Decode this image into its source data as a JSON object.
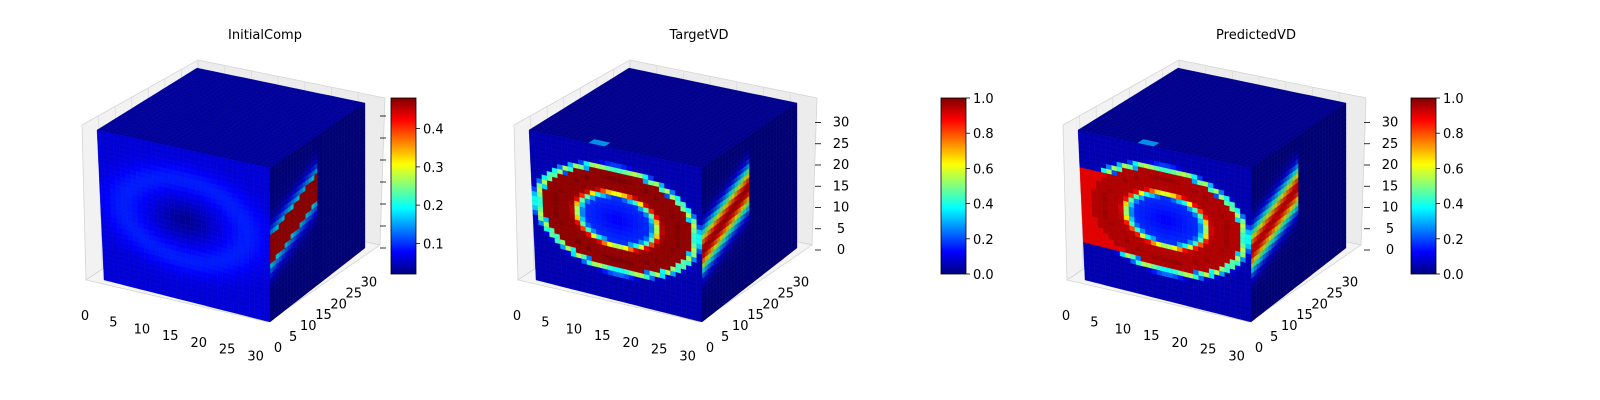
{
  "figure": {
    "colormap": "jet",
    "colormap_stops": [
      "#00007f",
      "#0000ff",
      "#007fff",
      "#00ffff",
      "#7fff7f",
      "#ffff00",
      "#ff7f00",
      "#ff0000",
      "#7f0000"
    ]
  },
  "chart_data": [
    {
      "type": "voxel-3d",
      "title": "InitialComp",
      "x_ticks": [
        "0",
        "5",
        "10",
        "15",
        "20",
        "25",
        "30"
      ],
      "y_ticks": [
        "0",
        "5",
        "10",
        "15",
        "20",
        "25",
        "30"
      ],
      "z_ticks": [],
      "axis_range": [
        0,
        32
      ],
      "colorbar": {
        "min": 0.02,
        "max": 0.48,
        "ticks": [
          "0.1",
          "0.2",
          "0.3",
          "0.4"
        ],
        "tick_values": [
          0.1,
          0.2,
          0.3,
          0.4
        ]
      },
      "front_background": 0.06,
      "side_background": 0.03,
      "top_value": 0.04,
      "ring_value": 0.09,
      "side_ring_value": 0.46
    },
    {
      "type": "voxel-3d",
      "title": "TargetVD",
      "x_ticks": [
        "0",
        "5",
        "10",
        "15",
        "20",
        "25",
        "30"
      ],
      "y_ticks": [
        "0",
        "5",
        "10",
        "15",
        "20",
        "25",
        "30"
      ],
      "z_ticks": [
        "0",
        "5",
        "10",
        "15",
        "20",
        "25",
        "30"
      ],
      "axis_range": [
        0,
        32
      ],
      "colorbar": {
        "min": 0.0,
        "max": 1.0,
        "ticks": [
          "0.0",
          "0.2",
          "0.4",
          "0.6",
          "0.8",
          "1.0"
        ],
        "tick_values": [
          0.0,
          0.2,
          0.4,
          0.6,
          0.8,
          1.0
        ]
      },
      "front_background": 0.05,
      "side_background": 0.02,
      "top_value": 0.03,
      "ring_value": 1.0,
      "side_ring_value": 0.95
    },
    {
      "type": "voxel-3d",
      "title": "PredictedVD",
      "x_ticks": [
        "0",
        "5",
        "10",
        "15",
        "20",
        "25",
        "30"
      ],
      "y_ticks": [
        "0",
        "5",
        "10",
        "15",
        "20",
        "25",
        "30"
      ],
      "z_ticks": [
        "0",
        "5",
        "10",
        "15",
        "20",
        "25",
        "30"
      ],
      "axis_range": [
        0,
        32
      ],
      "colorbar": {
        "min": 0.0,
        "max": 1.0,
        "ticks": [
          "0.0",
          "0.2",
          "0.4",
          "0.6",
          "0.8",
          "1.0"
        ],
        "tick_values": [
          0.0,
          0.2,
          0.4,
          0.6,
          0.8,
          1.0
        ]
      },
      "front_background": 0.05,
      "side_background": 0.02,
      "top_value": 0.03,
      "ring_value": 0.97,
      "side_ring_value": 0.92
    }
  ]
}
